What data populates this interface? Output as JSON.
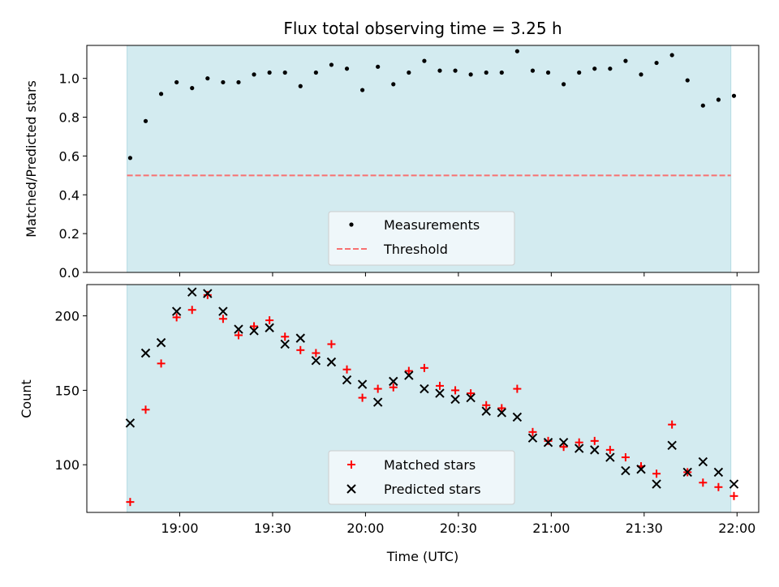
{
  "chart_data": [
    {
      "type": "scatter",
      "title": "Flux total observing time = 3.25 h",
      "xlabel": "",
      "ylabel": "Matched/Predicted stars",
      "ylim": [
        0,
        1.17
      ],
      "yticks": [
        0.0,
        0.2,
        0.4,
        0.6,
        0.8,
        1.0
      ],
      "ytick_labels": [
        "0.0",
        "0.2",
        "0.4",
        "0.6",
        "0.8",
        "1.0"
      ],
      "observing_window": [
        "18:43",
        "21:58"
      ],
      "legend_position": "lower-center",
      "series": [
        {
          "name": "Measurements",
          "color": "#000000",
          "marker": "dot",
          "x": [
            "18:44",
            "18:49",
            "18:54",
            "18:59",
            "19:04",
            "19:09",
            "19:14",
            "19:19",
            "19:24",
            "19:29",
            "19:34",
            "19:39",
            "19:44",
            "19:49",
            "19:54",
            "19:59",
            "20:04",
            "20:09",
            "20:14",
            "20:19",
            "20:24",
            "20:29",
            "20:34",
            "20:39",
            "20:44",
            "20:49",
            "20:54",
            "20:59",
            "21:04",
            "21:09",
            "21:14",
            "21:19",
            "21:24",
            "21:29",
            "21:34",
            "21:39",
            "21:44",
            "21:49",
            "21:54",
            "21:59"
          ],
          "y": [
            0.59,
            0.78,
            0.92,
            0.98,
            0.95,
            1.0,
            0.98,
            0.98,
            1.02,
            1.03,
            1.03,
            0.96,
            1.03,
            1.07,
            1.05,
            0.94,
            1.06,
            0.97,
            1.03,
            1.09,
            1.04,
            1.04,
            1.02,
            1.03,
            1.03,
            1.14,
            1.04,
            1.03,
            0.97,
            1.03,
            1.05,
            1.05,
            1.09,
            1.02,
            1.08,
            1.12,
            0.99,
            0.86,
            0.89,
            0.91
          ]
        },
        {
          "name": "Threshold",
          "color": "#f87171",
          "style": "dashed",
          "y": 0.5
        }
      ]
    },
    {
      "type": "scatter",
      "title": "",
      "xlabel": "Time (UTC)",
      "ylabel": "Count",
      "ylim": [
        68,
        221
      ],
      "yticks": [
        100,
        150,
        200
      ],
      "ytick_labels": [
        "100",
        "150",
        "200"
      ],
      "xticks": [
        "19:00",
        "19:30",
        "20:00",
        "20:30",
        "21:00",
        "21:30",
        "22:00"
      ],
      "observing_window": [
        "18:43",
        "21:58"
      ],
      "legend_position": "lower-center",
      "series": [
        {
          "name": "Matched stars",
          "color": "#ff0000",
          "marker": "plus",
          "x": [
            "18:44",
            "18:49",
            "18:54",
            "18:59",
            "19:04",
            "19:09",
            "19:14",
            "19:19",
            "19:24",
            "19:29",
            "19:34",
            "19:39",
            "19:44",
            "19:49",
            "19:54",
            "19:59",
            "20:04",
            "20:09",
            "20:14",
            "20:19",
            "20:24",
            "20:29",
            "20:34",
            "20:39",
            "20:44",
            "20:49",
            "20:54",
            "20:59",
            "21:04",
            "21:09",
            "21:14",
            "21:19",
            "21:24",
            "21:29",
            "21:34",
            "21:39",
            "21:44",
            "21:49",
            "21:54",
            "21:59"
          ],
          "y": [
            75,
            137,
            168,
            199,
            204,
            214,
            198,
            187,
            193,
            197,
            186,
            177,
            175,
            181,
            164,
            145,
            151,
            152,
            163,
            165,
            153,
            150,
            148,
            140,
            138,
            151,
            122,
            116,
            112,
            115,
            116,
            110,
            105,
            99,
            94,
            127,
            95,
            88,
            85,
            79
          ]
        },
        {
          "name": "Predicted stars",
          "color": "#000000",
          "marker": "x",
          "x": [
            "18:44",
            "18:49",
            "18:54",
            "18:59",
            "19:04",
            "19:09",
            "19:14",
            "19:19",
            "19:24",
            "19:29",
            "19:34",
            "19:39",
            "19:44",
            "19:49",
            "19:54",
            "19:59",
            "20:04",
            "20:09",
            "20:14",
            "20:19",
            "20:24",
            "20:29",
            "20:34",
            "20:39",
            "20:44",
            "20:49",
            "20:54",
            "20:59",
            "21:04",
            "21:09",
            "21:14",
            "21:19",
            "21:24",
            "21:29",
            "21:34",
            "21:39",
            "21:44",
            "21:49",
            "21:54",
            "21:59"
          ],
          "y": [
            128,
            175,
            182,
            203,
            216,
            215,
            203,
            191,
            190,
            192,
            181,
            185,
            170,
            169,
            157,
            154,
            142,
            156,
            160,
            151,
            148,
            144,
            145,
            136,
            135,
            132,
            118,
            115,
            115,
            111,
            110,
            105,
            96,
            97,
            87,
            113,
            95,
            102,
            95,
            87
          ]
        }
      ]
    }
  ],
  "colors": {
    "observing_band": "#d3ebf0",
    "band_edge": "#b5dbe4"
  }
}
